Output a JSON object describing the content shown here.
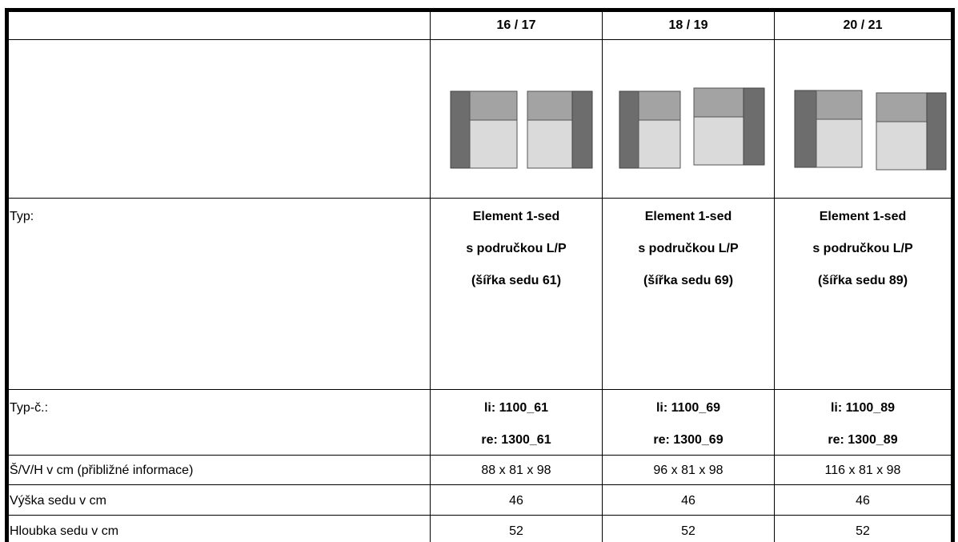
{
  "columns": [
    "16 / 17",
    "18 / 19",
    "20 / 21"
  ],
  "rows": {
    "typ": {
      "label": "Typ:",
      "values": [
        [
          "Element 1-sed",
          "s područkou L/P",
          "(šířka sedu 61)"
        ],
        [
          "Element 1-sed",
          "s područkou L/P",
          "(šířka sedu 69)"
        ],
        [
          "Element 1-sed",
          "s područkou L/P",
          "(šířka sedu 89)"
        ]
      ]
    },
    "typ_c": {
      "label": "Typ-č.:",
      "values": [
        [
          "li: 1100_61",
          "re: 1300_61"
        ],
        [
          "li: 1100_69",
          "re: 1300_69"
        ],
        [
          "li: 1100_89",
          "re: 1300_89"
        ]
      ]
    },
    "dimensions": {
      "label": "Š/V/H v cm  (přibližné informace)",
      "values": [
        "88 x 81 x 98",
        "96 x 81 x 98",
        "116 x 81 x 98"
      ]
    },
    "seat_height": {
      "label": "Výška sedu v cm",
      "values": [
        "46",
        "46",
        "46"
      ]
    },
    "seat_depth": {
      "label": "Hloubka sedu v cm",
      "values": [
        "52",
        "52",
        "52"
      ]
    }
  },
  "colors": {
    "armrest": "#6d6d6d",
    "backrest": "#a3a3a3",
    "seat": "#dadada"
  }
}
